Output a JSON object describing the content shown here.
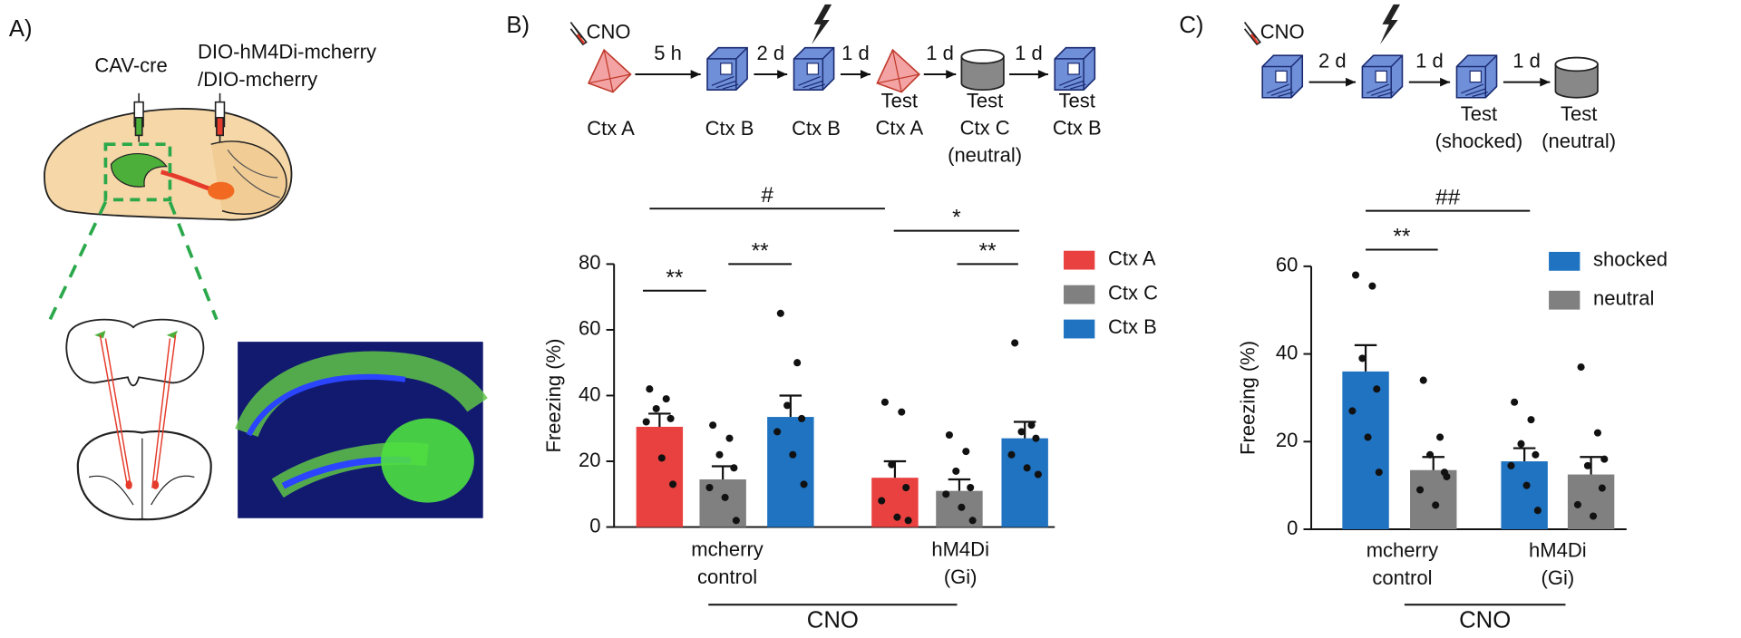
{
  "panels": {
    "a": {
      "label": "A)",
      "virus1": "CAV-cre",
      "virus2": [
        "DIO-hM4Di-mcherry",
        "/DIO-mcherry"
      ]
    },
    "b": {
      "label": "B)",
      "drug": "CNO",
      "intervals": [
        "5 h",
        "2 d",
        "1 d",
        "1 d",
        "1 d"
      ],
      "steps": [
        [
          "Ctx A"
        ],
        [
          "Ctx B"
        ],
        [
          "Ctx B"
        ],
        [
          "Test",
          "Ctx A"
        ],
        [
          "Test",
          "Ctx C",
          "(neutral)"
        ],
        [
          "Test",
          "Ctx B"
        ]
      ]
    },
    "c": {
      "label": "C)",
      "drug": "CNO",
      "intervals": [
        "2 d",
        "1 d",
        "1 d"
      ],
      "steps": [
        [],
        [],
        [
          "Test",
          "(shocked)"
        ],
        [
          "Test",
          "(neutral)"
        ]
      ]
    }
  },
  "chart_data": [
    {
      "type": "bar",
      "y_label": "Freezing (%)",
      "categories": [
        "mcherry control",
        "hM4Di (Gi)"
      ],
      "group_label": "CNO",
      "ylim": [
        0,
        80
      ],
      "yticks": [
        0,
        20,
        40,
        60,
        80
      ],
      "annotations": [
        "#",
        "*",
        "**",
        "**",
        "**"
      ],
      "series": [
        {
          "name": "Ctx A",
          "color": "#e8413f",
          "values": [
            30.5,
            15
          ],
          "errors": [
            4,
            5
          ],
          "points": [
            [
              42,
              39,
              36,
              33,
              32,
              21,
              13
            ],
            [
              38,
              35,
              19,
              12,
              8,
              3,
              2
            ]
          ]
        },
        {
          "name": "Ctx C",
          "color": "#808080",
          "values": [
            14.5,
            11
          ],
          "errors": [
            4,
            3.5
          ],
          "points": [
            [
              31,
              27,
              22,
              18,
              12,
              9,
              2
            ],
            [
              28,
              23,
              17,
              12,
              10,
              6,
              2
            ]
          ]
        },
        {
          "name": "Ctx B",
          "color": "#1f73c1",
          "values": [
            33.5,
            27
          ],
          "errors": [
            6.5,
            5
          ],
          "points": [
            [
              65,
              50,
              37,
              33,
              29,
              22,
              13
            ],
            [
              56,
              31,
              29,
              27,
              22,
              18,
              16
            ]
          ]
        }
      ]
    },
    {
      "type": "bar",
      "y_label": "Freezing (%)",
      "categories": [
        "mcherry control",
        "hM4Di (Gi)"
      ],
      "group_label": "CNO",
      "ylim": [
        0,
        60
      ],
      "yticks": [
        0,
        20,
        40,
        60
      ],
      "annotations": [
        "##",
        "**"
      ],
      "series": [
        {
          "name": "shocked",
          "color": "#1f73c1",
          "values": [
            36,
            15.5
          ],
          "errors": [
            6,
            3
          ],
          "points": [
            [
              58,
              55.5,
              39,
              32,
              27,
              21,
              13
            ],
            [
              29,
              25,
              19.5,
              17,
              14.5,
              10,
              4.3
            ]
          ]
        },
        {
          "name": "neutral",
          "color": "#808080",
          "values": [
            13.5,
            12.5
          ],
          "errors": [
            3,
            4
          ],
          "points": [
            [
              34,
              21,
              17,
              13,
              9,
              5.5,
              12
            ],
            [
              37,
              22,
              14.5,
              9.4,
              5.6,
              3,
              16
            ]
          ]
        }
      ]
    }
  ]
}
